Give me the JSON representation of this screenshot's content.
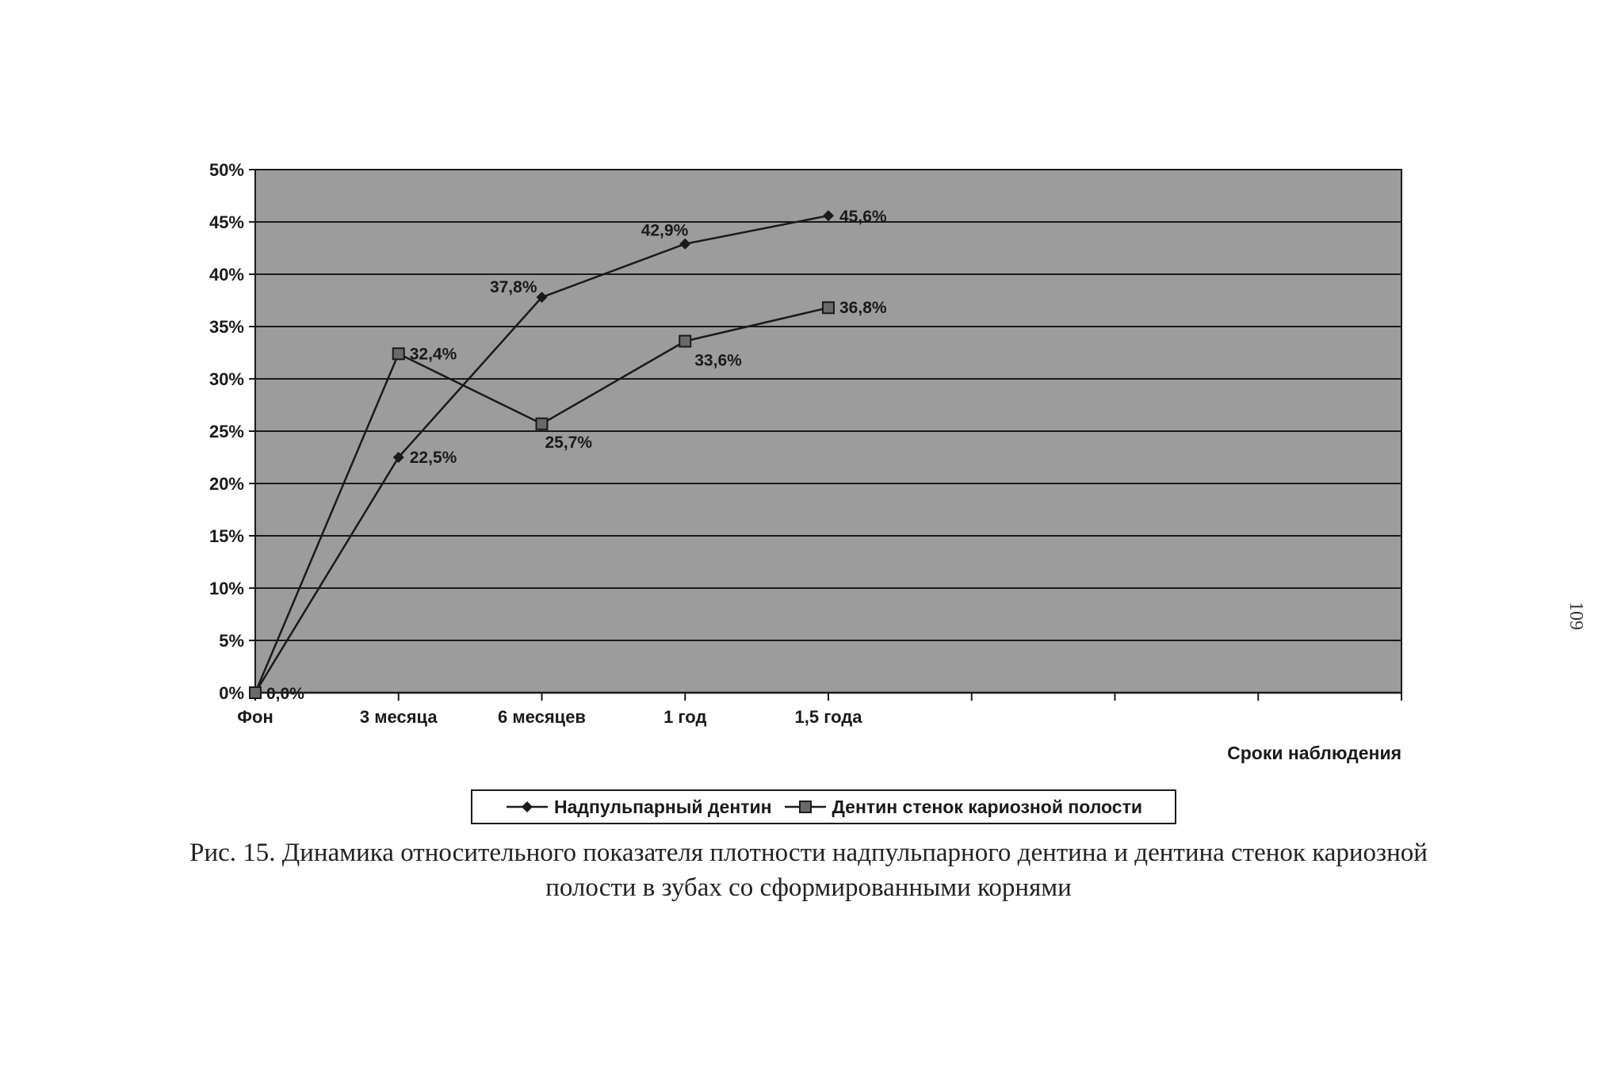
{
  "chart_data": {
    "type": "line",
    "categories": [
      "Фон",
      "3 месяца",
      "6 месяцев",
      "1 год",
      "1,5 года"
    ],
    "series": [
      {
        "name": "Надпульпарный дентин",
        "marker": "diamond",
        "values": [
          0.0,
          22.5,
          37.8,
          42.9,
          45.6
        ],
        "labels": [
          "0,0%",
          "22,5%",
          "37,8%",
          "42,9%",
          "45,6%"
        ]
      },
      {
        "name": "Дентин стенок кариозной полости",
        "marker": "square",
        "values": [
          0.0,
          32.4,
          25.7,
          33.6,
          36.8
        ],
        "labels": [
          "",
          "32,4%",
          "25,7%",
          "33,6%",
          "36,8%"
        ]
      }
    ],
    "y_ticks": [
      "0%",
      "5%",
      "10%",
      "15%",
      "20%",
      "25%",
      "30%",
      "35%",
      "40%",
      "45%",
      "50%"
    ],
    "ylim": [
      0,
      50
    ],
    "x_slots": 8,
    "xlabel": "Сроки наблюдения",
    "ylabel": "",
    "grid": "horizontal",
    "legend_position": "bottom",
    "colors": {
      "plot_bg": "#9c9c9c",
      "line": "#1a1a1a",
      "grid": "#1a1a1a",
      "marker_square_fill": "#6a6a6a"
    }
  },
  "caption": {
    "line1": "Рис. 15. Динамика относительного показателя плотности надпульпарного дентина и дентина стенок кариозной",
    "line2": "полости в зубах со сформированными корнями"
  },
  "page_number": "109"
}
